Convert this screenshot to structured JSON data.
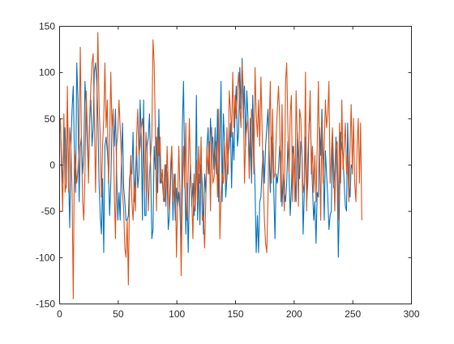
{
  "chart_data": {
    "type": "line",
    "title": "",
    "xlabel": "",
    "ylabel": "",
    "xlim": [
      0,
      300
    ],
    "ylim": [
      -150,
      150
    ],
    "xticks": [
      0,
      50,
      100,
      150,
      200,
      250,
      300
    ],
    "yticks": [
      -150,
      -100,
      -50,
      0,
      50,
      100,
      150
    ],
    "xtick_labels": [
      "0",
      "50",
      "100",
      "150",
      "200",
      "250",
      "300"
    ],
    "ytick_labels": [
      "-150",
      "-100",
      "-50",
      "0",
      "50",
      "100",
      "150"
    ],
    "grid": false,
    "legend": "none",
    "series": [
      {
        "color": "#0072BD",
        "x_start": 1,
        "x_step": 1,
        "values": [
          45,
          10,
          -20,
          15,
          40,
          -25,
          70,
          -10,
          -68,
          20,
          60,
          85,
          10,
          -30,
          110,
          70,
          -40,
          20,
          30,
          -10,
          10,
          90,
          60,
          20,
          -10,
          50,
          70,
          20,
          40,
          100,
          110,
          90,
          50,
          -20,
          -55,
          -75,
          -15,
          -95,
          20,
          30,
          15,
          -5,
          -55,
          -20,
          40,
          55,
          20,
          60,
          -10,
          -60,
          -30,
          -60,
          0,
          45,
          -25,
          -40,
          -60,
          -60,
          -55,
          -15,
          -5,
          -10,
          35,
          -40,
          -10,
          20,
          -25,
          -10,
          70,
          30,
          -60,
          70,
          -55,
          -55,
          20,
          30,
          55,
          -5,
          -80,
          -70,
          20,
          -5,
          30,
          -30,
          60,
          -20,
          -15,
          -20,
          -35,
          -40,
          0,
          -10,
          -70,
          -55,
          -20,
          20,
          -60,
          -10,
          -60,
          -25,
          -45,
          -30,
          -50,
          -90,
          40,
          90,
          -5,
          -75,
          -20,
          -95,
          -30,
          0,
          -45,
          -20,
          -55,
          -40,
          75,
          -60,
          -10,
          -65,
          0,
          -20,
          -75,
          -10,
          -30,
          20,
          40,
          -10,
          50,
          20,
          30,
          -5,
          40,
          -10,
          60,
          -40,
          20,
          90,
          -40,
          55,
          25,
          -35,
          -15,
          10,
          20,
          45,
          -25,
          35,
          5,
          60,
          85,
          20,
          35,
          105,
          60,
          115,
          50,
          85,
          20,
          80,
          50,
          -5,
          50,
          -20,
          75,
          20,
          -25,
          -95,
          -55,
          -95,
          -40,
          -35,
          -5,
          15,
          -20,
          20,
          40,
          60,
          15,
          -30,
          30,
          20,
          -30,
          -80,
          -10,
          -20,
          -5,
          20,
          10,
          -45,
          -10,
          -30,
          -40,
          -20,
          25,
          -10,
          -55,
          -25,
          20,
          10,
          -10,
          -40,
          35,
          10,
          -15,
          25,
          15,
          -75,
          -30,
          30,
          -40,
          -20,
          40,
          60,
          10,
          -25,
          -60,
          -40,
          -85,
          -30,
          -35,
          40,
          10,
          60,
          10,
          -60,
          15,
          -10,
          -35,
          -70,
          -55,
          -50,
          25,
          -25,
          -10,
          30,
          -10,
          -100,
          -40,
          35,
          20,
          10,
          -20,
          -45,
          -50,
          45,
          -20,
          -35,
          0,
          -5
        ]
      },
      {
        "color": "#D95319",
        "x_start": 1,
        "x_step": 1,
        "values": [
          50,
          -5,
          -50,
          55,
          -30,
          -20,
          85,
          -30,
          40,
          20,
          -30,
          -145,
          15,
          0,
          -20,
          -5,
          20,
          127,
          25,
          -40,
          -60,
          -10,
          80,
          40,
          -20,
          50,
          85,
          110,
          120,
          50,
          -30,
          55,
          143,
          65,
          30,
          -35,
          20,
          50,
          110,
          40,
          70,
          -20,
          20,
          100,
          40,
          60,
          -30,
          -80,
          20,
          35,
          70,
          40,
          10,
          -30,
          -50,
          -90,
          -100,
          -60,
          -130,
          -30,
          10,
          -40,
          -60,
          -20,
          -50,
          30,
          60,
          10,
          20,
          40,
          50,
          30,
          -30,
          35,
          10,
          -50,
          -10,
          10,
          30,
          135,
          110,
          35,
          -50,
          40,
          10,
          30,
          -20,
          -5,
          -40,
          0,
          -45,
          20,
          -20,
          -50,
          0,
          20,
          -40,
          -25,
          -10,
          -100,
          -40,
          20,
          -30,
          -120,
          -35,
          20,
          -25,
          45,
          -60,
          -10,
          50,
          -10,
          -35,
          -80,
          -10,
          -50,
          5,
          -40,
          20,
          -20,
          30,
          -60,
          -55,
          -90,
          -40,
          20,
          -10,
          25,
          -50,
          40,
          -20,
          -15,
          5,
          25,
          -35,
          60,
          -80,
          -35,
          -10,
          -20,
          25,
          -20,
          40,
          -10,
          80,
          60,
          30,
          100,
          40,
          75,
          50,
          80,
          100,
          65,
          40,
          110,
          80,
          -20,
          30,
          40,
          50,
          -15,
          20,
          60,
          45,
          -10,
          105,
          55,
          30,
          70,
          20,
          95,
          40,
          -20,
          -60,
          -85,
          -95,
          -40,
          40,
          90,
          -20,
          60,
          -15,
          -10,
          30,
          60,
          85,
          50,
          -40,
          65,
          -20,
          -50,
          90,
          110,
          40,
          -10,
          55,
          75,
          -40,
          20,
          -40,
          80,
          30,
          -45,
          60,
          50,
          10,
          -30,
          -20,
          100,
          -50,
          10,
          40,
          80,
          -10,
          20,
          -30,
          10,
          -40,
          20,
          90,
          10,
          -60,
          50,
          -20,
          20,
          70,
          40,
          55,
          90,
          -20,
          10,
          40,
          0,
          -50,
          20,
          25,
          -60,
          45,
          -20,
          70,
          -5,
          20,
          45,
          -10,
          10,
          -40,
          20,
          65,
          -10,
          50,
          -20,
          -40,
          20,
          50,
          -20,
          45,
          -60
        ]
      }
    ]
  }
}
